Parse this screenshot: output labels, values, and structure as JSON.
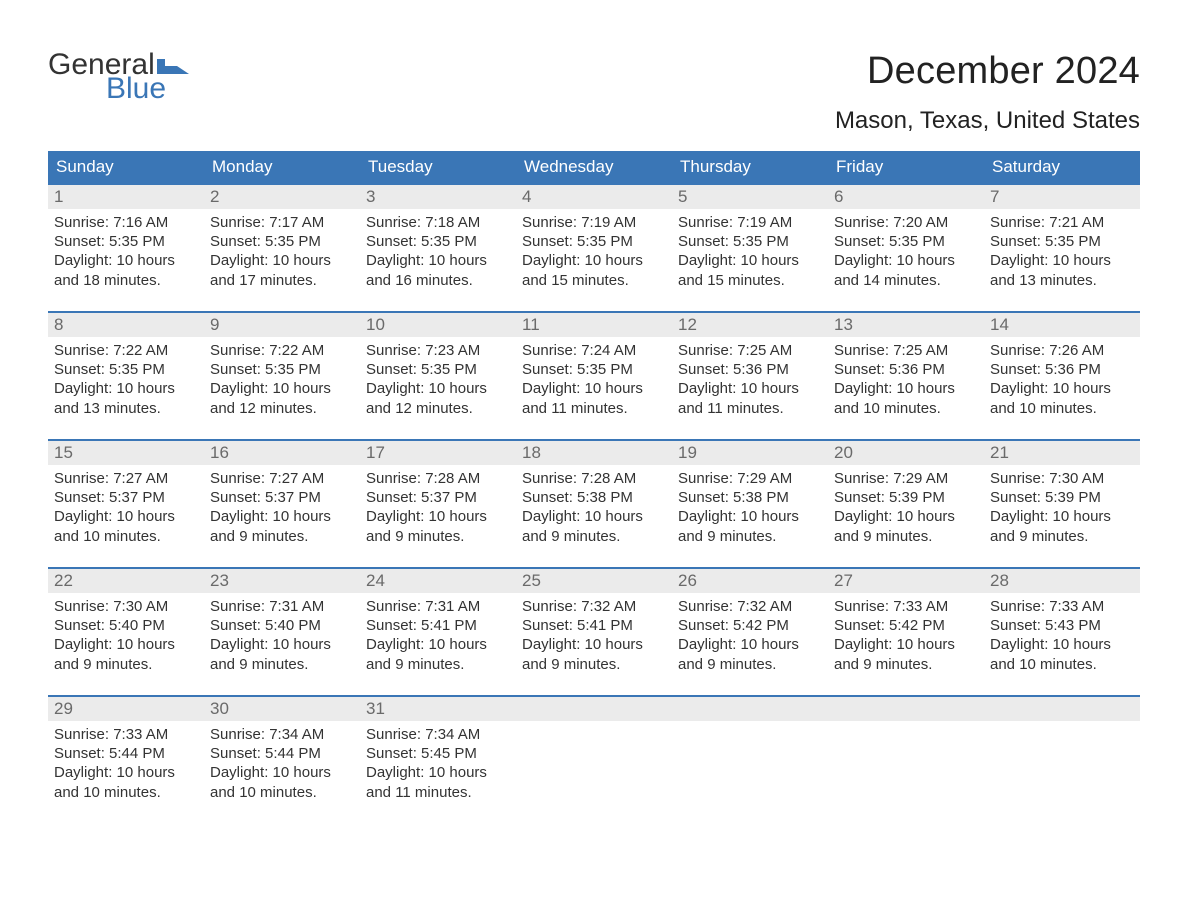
{
  "logo": {
    "text1": "General",
    "text2": "Blue",
    "flag_color": "#3a76b6"
  },
  "title": "December 2024",
  "location": "Mason, Texas, United States",
  "colors": {
    "header_bg": "#3a76b6",
    "header_text": "#ffffff",
    "daynum_bg": "#ebebeb",
    "daynum_text": "#6a6a6a",
    "body_text": "#333333",
    "page_bg": "#ffffff",
    "week_border": "#3a76b6"
  },
  "typography": {
    "title_fontsize": 38,
    "location_fontsize": 24,
    "weekday_fontsize": 17,
    "daynum_fontsize": 17,
    "body_fontsize": 15,
    "font_family": "Arial"
  },
  "weekday_labels": [
    "Sunday",
    "Monday",
    "Tuesday",
    "Wednesday",
    "Thursday",
    "Friday",
    "Saturday"
  ],
  "labels": {
    "sunrise": "Sunrise:",
    "sunset": "Sunset:",
    "daylight": "Daylight:"
  },
  "weeks": [
    [
      {
        "n": "1",
        "sunrise": "7:16 AM",
        "sunset": "5:35 PM",
        "daylight": "10 hours and 18 minutes."
      },
      {
        "n": "2",
        "sunrise": "7:17 AM",
        "sunset": "5:35 PM",
        "daylight": "10 hours and 17 minutes."
      },
      {
        "n": "3",
        "sunrise": "7:18 AM",
        "sunset": "5:35 PM",
        "daylight": "10 hours and 16 minutes."
      },
      {
        "n": "4",
        "sunrise": "7:19 AM",
        "sunset": "5:35 PM",
        "daylight": "10 hours and 15 minutes."
      },
      {
        "n": "5",
        "sunrise": "7:19 AM",
        "sunset": "5:35 PM",
        "daylight": "10 hours and 15 minutes."
      },
      {
        "n": "6",
        "sunrise": "7:20 AM",
        "sunset": "5:35 PM",
        "daylight": "10 hours and 14 minutes."
      },
      {
        "n": "7",
        "sunrise": "7:21 AM",
        "sunset": "5:35 PM",
        "daylight": "10 hours and 13 minutes."
      }
    ],
    [
      {
        "n": "8",
        "sunrise": "7:22 AM",
        "sunset": "5:35 PM",
        "daylight": "10 hours and 13 minutes."
      },
      {
        "n": "9",
        "sunrise": "7:22 AM",
        "sunset": "5:35 PM",
        "daylight": "10 hours and 12 minutes."
      },
      {
        "n": "10",
        "sunrise": "7:23 AM",
        "sunset": "5:35 PM",
        "daylight": "10 hours and 12 minutes."
      },
      {
        "n": "11",
        "sunrise": "7:24 AM",
        "sunset": "5:35 PM",
        "daylight": "10 hours and 11 minutes."
      },
      {
        "n": "12",
        "sunrise": "7:25 AM",
        "sunset": "5:36 PM",
        "daylight": "10 hours and 11 minutes."
      },
      {
        "n": "13",
        "sunrise": "7:25 AM",
        "sunset": "5:36 PM",
        "daylight": "10 hours and 10 minutes."
      },
      {
        "n": "14",
        "sunrise": "7:26 AM",
        "sunset": "5:36 PM",
        "daylight": "10 hours and 10 minutes."
      }
    ],
    [
      {
        "n": "15",
        "sunrise": "7:27 AM",
        "sunset": "5:37 PM",
        "daylight": "10 hours and 10 minutes."
      },
      {
        "n": "16",
        "sunrise": "7:27 AM",
        "sunset": "5:37 PM",
        "daylight": "10 hours and 9 minutes."
      },
      {
        "n": "17",
        "sunrise": "7:28 AM",
        "sunset": "5:37 PM",
        "daylight": "10 hours and 9 minutes."
      },
      {
        "n": "18",
        "sunrise": "7:28 AM",
        "sunset": "5:38 PM",
        "daylight": "10 hours and 9 minutes."
      },
      {
        "n": "19",
        "sunrise": "7:29 AM",
        "sunset": "5:38 PM",
        "daylight": "10 hours and 9 minutes."
      },
      {
        "n": "20",
        "sunrise": "7:29 AM",
        "sunset": "5:39 PM",
        "daylight": "10 hours and 9 minutes."
      },
      {
        "n": "21",
        "sunrise": "7:30 AM",
        "sunset": "5:39 PM",
        "daylight": "10 hours and 9 minutes."
      }
    ],
    [
      {
        "n": "22",
        "sunrise": "7:30 AM",
        "sunset": "5:40 PM",
        "daylight": "10 hours and 9 minutes."
      },
      {
        "n": "23",
        "sunrise": "7:31 AM",
        "sunset": "5:40 PM",
        "daylight": "10 hours and 9 minutes."
      },
      {
        "n": "24",
        "sunrise": "7:31 AM",
        "sunset": "5:41 PM",
        "daylight": "10 hours and 9 minutes."
      },
      {
        "n": "25",
        "sunrise": "7:32 AM",
        "sunset": "5:41 PM",
        "daylight": "10 hours and 9 minutes."
      },
      {
        "n": "26",
        "sunrise": "7:32 AM",
        "sunset": "5:42 PM",
        "daylight": "10 hours and 9 minutes."
      },
      {
        "n": "27",
        "sunrise": "7:33 AM",
        "sunset": "5:42 PM",
        "daylight": "10 hours and 9 minutes."
      },
      {
        "n": "28",
        "sunrise": "7:33 AM",
        "sunset": "5:43 PM",
        "daylight": "10 hours and 10 minutes."
      }
    ],
    [
      {
        "n": "29",
        "sunrise": "7:33 AM",
        "sunset": "5:44 PM",
        "daylight": "10 hours and 10 minutes."
      },
      {
        "n": "30",
        "sunrise": "7:34 AM",
        "sunset": "5:44 PM",
        "daylight": "10 hours and 10 minutes."
      },
      {
        "n": "31",
        "sunrise": "7:34 AM",
        "sunset": "5:45 PM",
        "daylight": "10 hours and 11 minutes."
      },
      {
        "empty": true
      },
      {
        "empty": true
      },
      {
        "empty": true
      },
      {
        "empty": true
      }
    ]
  ]
}
